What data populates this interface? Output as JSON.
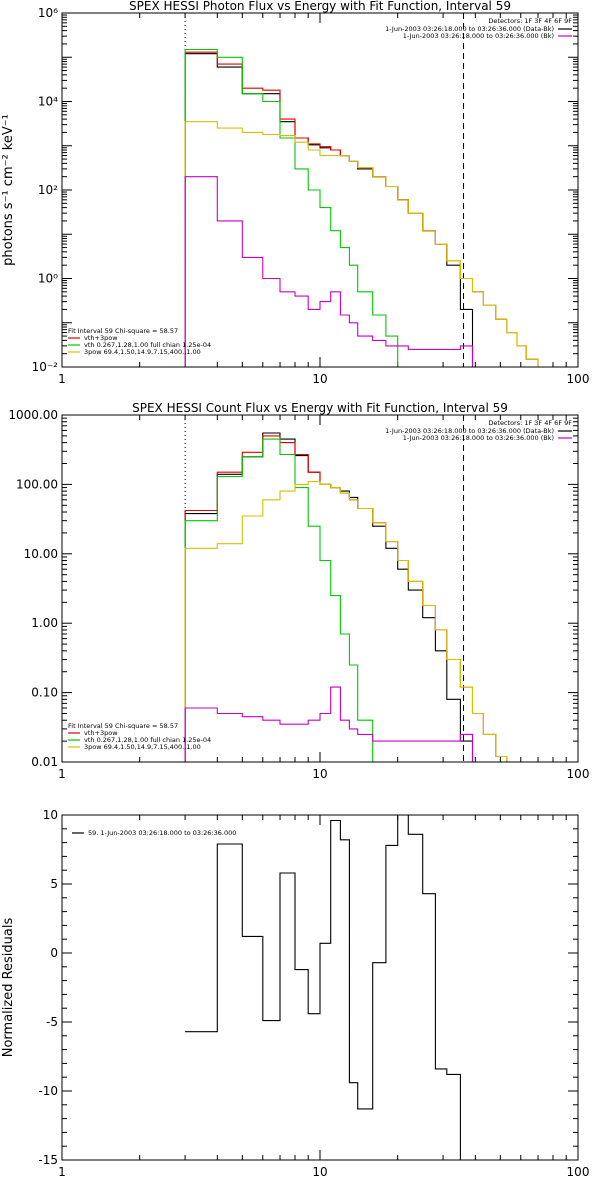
{
  "chart_data": [
    {
      "type": "line",
      "step": true,
      "title": "SPEX HESSI Photon Flux vs Energy with Fit Function, Interval 59",
      "ylabel": "photons s⁻¹ cm⁻² keV⁻¹",
      "xlabel": "",
      "xscale": "log",
      "yscale": "log",
      "xlim": [
        1,
        100
      ],
      "ylim": [
        0.01,
        1000000
      ],
      "x_ticks": [
        "1",
        "10",
        "100"
      ],
      "y_ticks": [
        {
          "value": 1000000,
          "label": "10⁶"
        },
        {
          "value": 10000,
          "label": "10⁴"
        },
        {
          "value": 100,
          "label": "10²"
        },
        {
          "value": 1,
          "label": "10⁰"
        },
        {
          "value": 0.01,
          "label": "10⁻²"
        }
      ],
      "legend_header": "Detectors: 1F 3F 4F 6F 9F",
      "legend_top_right": [
        {
          "text": "1-Jun-2003 03:26:18.000 to 03:26:36.000 (Data-Bk)",
          "color": "#000000"
        },
        {
          "text": "1-Jun-2003 03:26:18.000 to 03:26:36.000 (Bk)",
          "color": "#c800c8"
        }
      ],
      "legend_bottom_left_header": "Fit Interval 59   Chi-square = 58.57",
      "legend_bottom_left": [
        {
          "text": "vth+3pow",
          "color": "#e00000"
        },
        {
          "text": "vth 0.267,1.28,1.00  full chian 1.25e-04",
          "color": "#00c800"
        },
        {
          "text": "3pow 69.4,1.50,14.9,7.15,400.,1.00",
          "color": "#d4c000"
        }
      ],
      "vlines": [
        {
          "x": 3,
          "style": "dotted"
        },
        {
          "x": 36,
          "style": "dashed"
        }
      ],
      "edges": [
        3,
        4,
        5,
        6,
        7,
        8,
        9,
        10,
        11,
        12,
        13,
        14,
        16,
        18,
        20,
        22,
        25,
        28,
        31,
        35,
        39,
        43,
        48,
        53,
        58,
        63,
        70
      ],
      "series": [
        {
          "name": "Data-Bk",
          "color": "#000000",
          "values": [
            120000,
            60000,
            15000,
            15000,
            3500,
            1500,
            1050,
            900,
            800,
            600,
            450,
            300,
            200,
            120,
            60,
            30,
            12,
            6,
            2,
            0.2
          ]
        },
        {
          "name": "vth+3pow",
          "color": "#e00000",
          "values": [
            130000,
            70000,
            20000,
            18000,
            4000,
            1500,
            1100,
            950,
            800,
            600,
            450,
            320,
            200,
            120,
            60,
            30,
            12,
            6,
            2.5,
            1,
            0.5,
            0.25,
            0.12,
            0.06,
            0.03,
            0.015
          ]
        },
        {
          "name": "vth",
          "color": "#00c800",
          "values": [
            150000,
            100000,
            15000,
            10000,
            1500,
            300,
            100,
            40,
            12,
            5,
            2,
            0.5,
            0.15,
            0.05,
            0.01,
            0.003
          ]
        },
        {
          "name": "3pow",
          "color": "#d4c000",
          "values": [
            3500,
            2500,
            2000,
            1800,
            1700,
            1200,
            800,
            600,
            600,
            600,
            450,
            320,
            200,
            120,
            60,
            30,
            12,
            6,
            2.5,
            1,
            0.5,
            0.25,
            0.12,
            0.06,
            0.03,
            0.015
          ]
        },
        {
          "name": "Bk",
          "color": "#c800c8",
          "values": [
            200,
            20,
            3,
            1,
            0.5,
            0.4,
            0.2,
            0.3,
            0.5,
            0.15,
            0.1,
            0.05,
            0.04,
            0.03,
            0.03,
            0.025,
            0.025,
            0.025,
            0.025,
            0.03
          ]
        }
      ]
    },
    {
      "type": "line",
      "step": true,
      "title": "SPEX HESSI Count Flux vs Energy with Fit Function, Interval 59",
      "ylabel": "",
      "xlabel": "",
      "xscale": "log",
      "yscale": "log",
      "xlim": [
        1,
        100
      ],
      "ylim": [
        0.01,
        1000
      ],
      "x_ticks": [
        "1",
        "10",
        "100"
      ],
      "y_ticks": [
        {
          "value": 1000,
          "label": "1000.00"
        },
        {
          "value": 100,
          "label": "100.00"
        },
        {
          "value": 10,
          "label": "10.00"
        },
        {
          "value": 1,
          "label": "1.00"
        },
        {
          "value": 0.1,
          "label": "0.10"
        },
        {
          "value": 0.01,
          "label": "0.01"
        }
      ],
      "legend_header": "Detectors: 1F 3F 4F 6F 9F",
      "legend_top_right": [
        {
          "text": "1-Jun-2003 03:26:18.000 to 03:26:36.000 (Data-Bk)",
          "color": "#000000"
        },
        {
          "text": "1-Jun-2003 03:26:18.000 to 03:26:36.000 (Bk)",
          "color": "#c800c8"
        }
      ],
      "legend_bottom_left_header": "Fit Interval 59   Chi-square = 58.57",
      "legend_bottom_left": [
        {
          "text": "vth+3pow",
          "color": "#e00000"
        },
        {
          "text": "vth 0.267,1.28,1.00  full chian 1.25e-04",
          "color": "#00c800"
        },
        {
          "text": "3pow 69.4,1.50,14.9,7.15,400.,1.00",
          "color": "#d4c000"
        }
      ],
      "vlines": [
        {
          "x": 3,
          "style": "dotted"
        },
        {
          "x": 36,
          "style": "dashed"
        }
      ],
      "edges": [
        3,
        4,
        5,
        6,
        7,
        8,
        9,
        10,
        11,
        12,
        13,
        14,
        16,
        18,
        20,
        22,
        25,
        28,
        31,
        35,
        39,
        43,
        48,
        53,
        58,
        63,
        70
      ],
      "series": [
        {
          "name": "Data-Bk",
          "color": "#000000",
          "values": [
            38,
            140,
            250,
            550,
            450,
            260,
            150,
            100,
            90,
            80,
            65,
            45,
            25,
            12,
            6,
            3,
            1.2,
            0.4,
            0.08,
            0.02
          ]
        },
        {
          "name": "vth+3pow",
          "color": "#e00000",
          "values": [
            42,
            150,
            290,
            500,
            400,
            270,
            150,
            100,
            90,
            75,
            60,
            45,
            28,
            15,
            8,
            4,
            1.8,
            0.8,
            0.3,
            0.12,
            0.05,
            0.025,
            0.012
          ]
        },
        {
          "name": "vth",
          "color": "#00c800",
          "values": [
            30,
            130,
            250,
            450,
            270,
            90,
            25,
            8,
            2.5,
            0.7,
            0.25,
            0.04,
            0.01
          ]
        },
        {
          "name": "3pow",
          "color": "#d4c000",
          "values": [
            12,
            14,
            35,
            60,
            80,
            100,
            110,
            100,
            90,
            75,
            60,
            45,
            28,
            15,
            8,
            4,
            1.8,
            0.8,
            0.3,
            0.12,
            0.05,
            0.025,
            0.012
          ]
        },
        {
          "name": "Bk",
          "color": "#c800c8",
          "values": [
            0.06,
            0.05,
            0.045,
            0.04,
            0.035,
            0.035,
            0.04,
            0.05,
            0.12,
            0.04,
            0.03,
            0.025,
            0.02,
            0.02,
            0.02,
            0.02,
            0.02,
            0.02,
            0.02,
            0.025
          ]
        }
      ]
    },
    {
      "type": "line",
      "step": true,
      "title": "",
      "ylabel": "Normalized Residuals",
      "xlabel": "",
      "xscale": "log",
      "yscale": "linear",
      "xlim": [
        1,
        100
      ],
      "ylim": [
        -15,
        10
      ],
      "x_ticks": [
        "1",
        "10",
        "100"
      ],
      "y_ticks": [
        {
          "value": 10,
          "label": "10"
        },
        {
          "value": 5,
          "label": "5"
        },
        {
          "value": 0,
          "label": "0"
        },
        {
          "value": -5,
          "label": "-5"
        },
        {
          "value": -10,
          "label": "-10"
        },
        {
          "value": -15,
          "label": "-15"
        }
      ],
      "legend": [
        {
          "text": "59.  1-Jun-2003 03:26:18.000 to 03:26:36.000",
          "color": "#000000"
        }
      ],
      "edges": [
        3,
        4,
        5,
        6,
        7,
        8,
        9,
        10,
        11,
        12,
        13,
        14,
        16,
        18,
        20,
        22,
        25,
        28,
        31,
        35,
        39
      ],
      "series": [
        {
          "name": "59",
          "color": "#000000",
          "values": [
            -5.7,
            7.9,
            1.2,
            -4.9,
            5.8,
            -1.2,
            -4.4,
            0.7,
            9.6,
            8.2,
            -9.4,
            -11.3,
            -0.7,
            7.8,
            10.0,
            8.6,
            4.3,
            -8.4,
            -8.8,
            -16
          ]
        }
      ]
    }
  ]
}
